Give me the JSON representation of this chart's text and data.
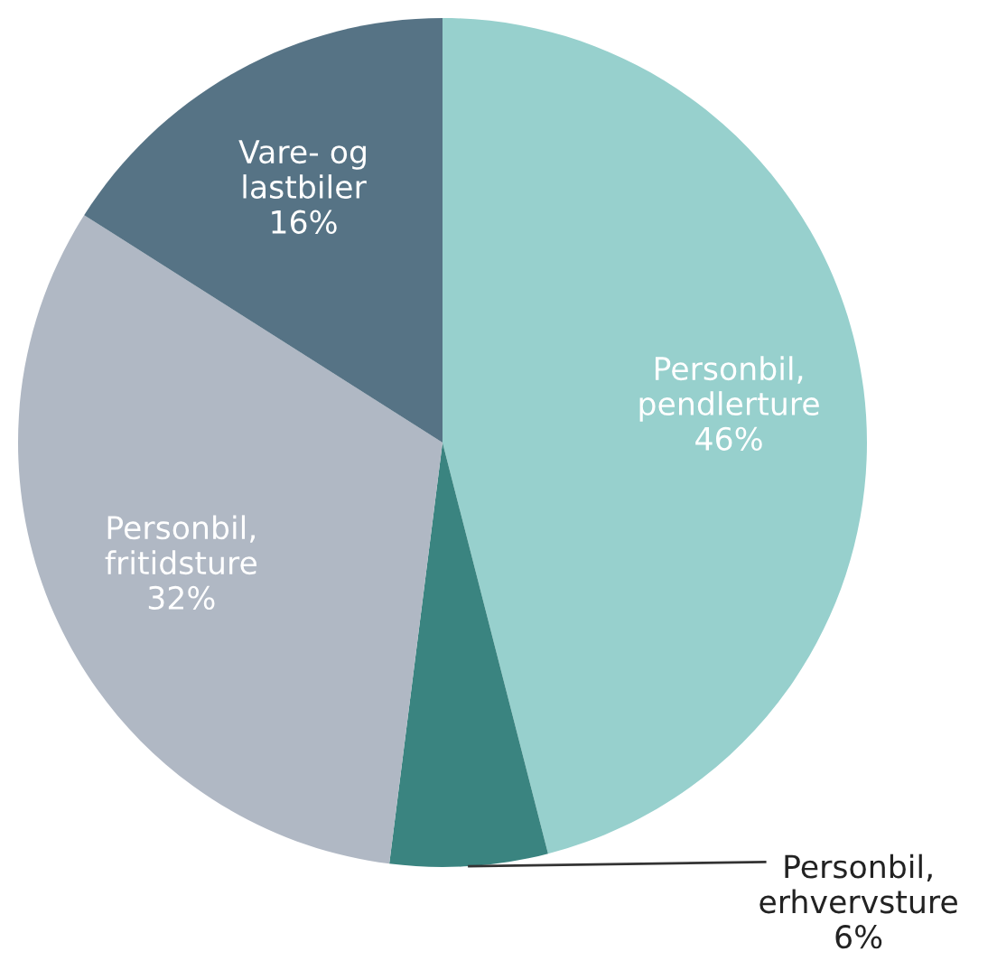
{
  "chart_data": {
    "type": "pie",
    "categories": [
      "Personbil,\npendlerture",
      "Personbil,\nerhvervsture",
      "Personbil,\nfritidsture",
      "Vare- og\nlastbiler"
    ],
    "values": [
      46,
      6,
      32,
      16
    ],
    "value_labels": [
      "46%",
      "6%",
      "32%",
      "16%"
    ],
    "colors": [
      "#97d0cd",
      "#3a8480",
      "#b0b8c4",
      "#567385"
    ],
    "legend": false
  }
}
